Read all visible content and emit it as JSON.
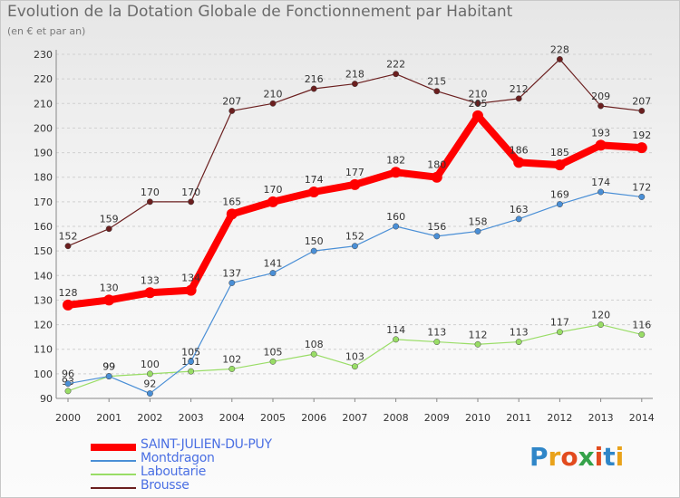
{
  "header": {
    "title": "Evolution de la Dotation Globale de Fonctionnement par Habitant",
    "subtitle": "(en € et par an)"
  },
  "chart_data": {
    "type": "line",
    "title": "Evolution de la Dotation Globale de Fonctionnement par Habitant",
    "subtitle": "(en € et par an)",
    "xlabel": "",
    "ylabel": "",
    "ylim": [
      90,
      230
    ],
    "yticks": [
      90,
      100,
      110,
      120,
      130,
      140,
      150,
      160,
      170,
      180,
      190,
      200,
      210,
      220,
      230
    ],
    "grid": true,
    "legend_position": "bottom-left",
    "categories": [
      "2000",
      "2001",
      "2002",
      "2003",
      "2004",
      "2005",
      "2006",
      "2007",
      "2008",
      "2009",
      "2010",
      "2011",
      "2012",
      "2013",
      "2014"
    ],
    "series": [
      {
        "name": "Brousse",
        "color": "#6b1f1f",
        "values": [
          152,
          159,
          170,
          170,
          207,
          210,
          216,
          218,
          222,
          215,
          210,
          212,
          228,
          209,
          207
        ]
      },
      {
        "name": "Laboutarie",
        "color": "#99dd66",
        "values": [
          93,
          99,
          100,
          101,
          102,
          105,
          108,
          103,
          114,
          113,
          112,
          113,
          117,
          120,
          116
        ]
      },
      {
        "name": "Montdragon",
        "color": "#4a8fd6",
        "values": [
          96,
          99,
          92,
          105,
          137,
          141,
          150,
          152,
          160,
          156,
          158,
          163,
          169,
          174,
          172
        ]
      },
      {
        "name": "SAINT-JULIEN-DU-PUY",
        "color": "#ff0000",
        "values": [
          128,
          130,
          133,
          134,
          165,
          170,
          174,
          177,
          182,
          180,
          205,
          186,
          185,
          193,
          192
        ]
      }
    ]
  },
  "legend": {
    "items": [
      {
        "label": "SAINT-JULIEN-DU-PUY",
        "color": "#ff0000"
      },
      {
        "label": "Montdragon",
        "color": "#4a8fd6"
      },
      {
        "label": "Laboutarie",
        "color": "#99dd66"
      },
      {
        "label": "Brousse",
        "color": "#6b1f1f"
      }
    ]
  },
  "logo": {
    "letters": [
      "P",
      "r",
      "o",
      "x",
      "i",
      "t",
      "i"
    ],
    "colors": [
      "#2f86c8",
      "#e9a21a",
      "#e24b1e",
      "#35a24a",
      "#e24b1e",
      "#2f86c8",
      "#e9a21a"
    ]
  }
}
